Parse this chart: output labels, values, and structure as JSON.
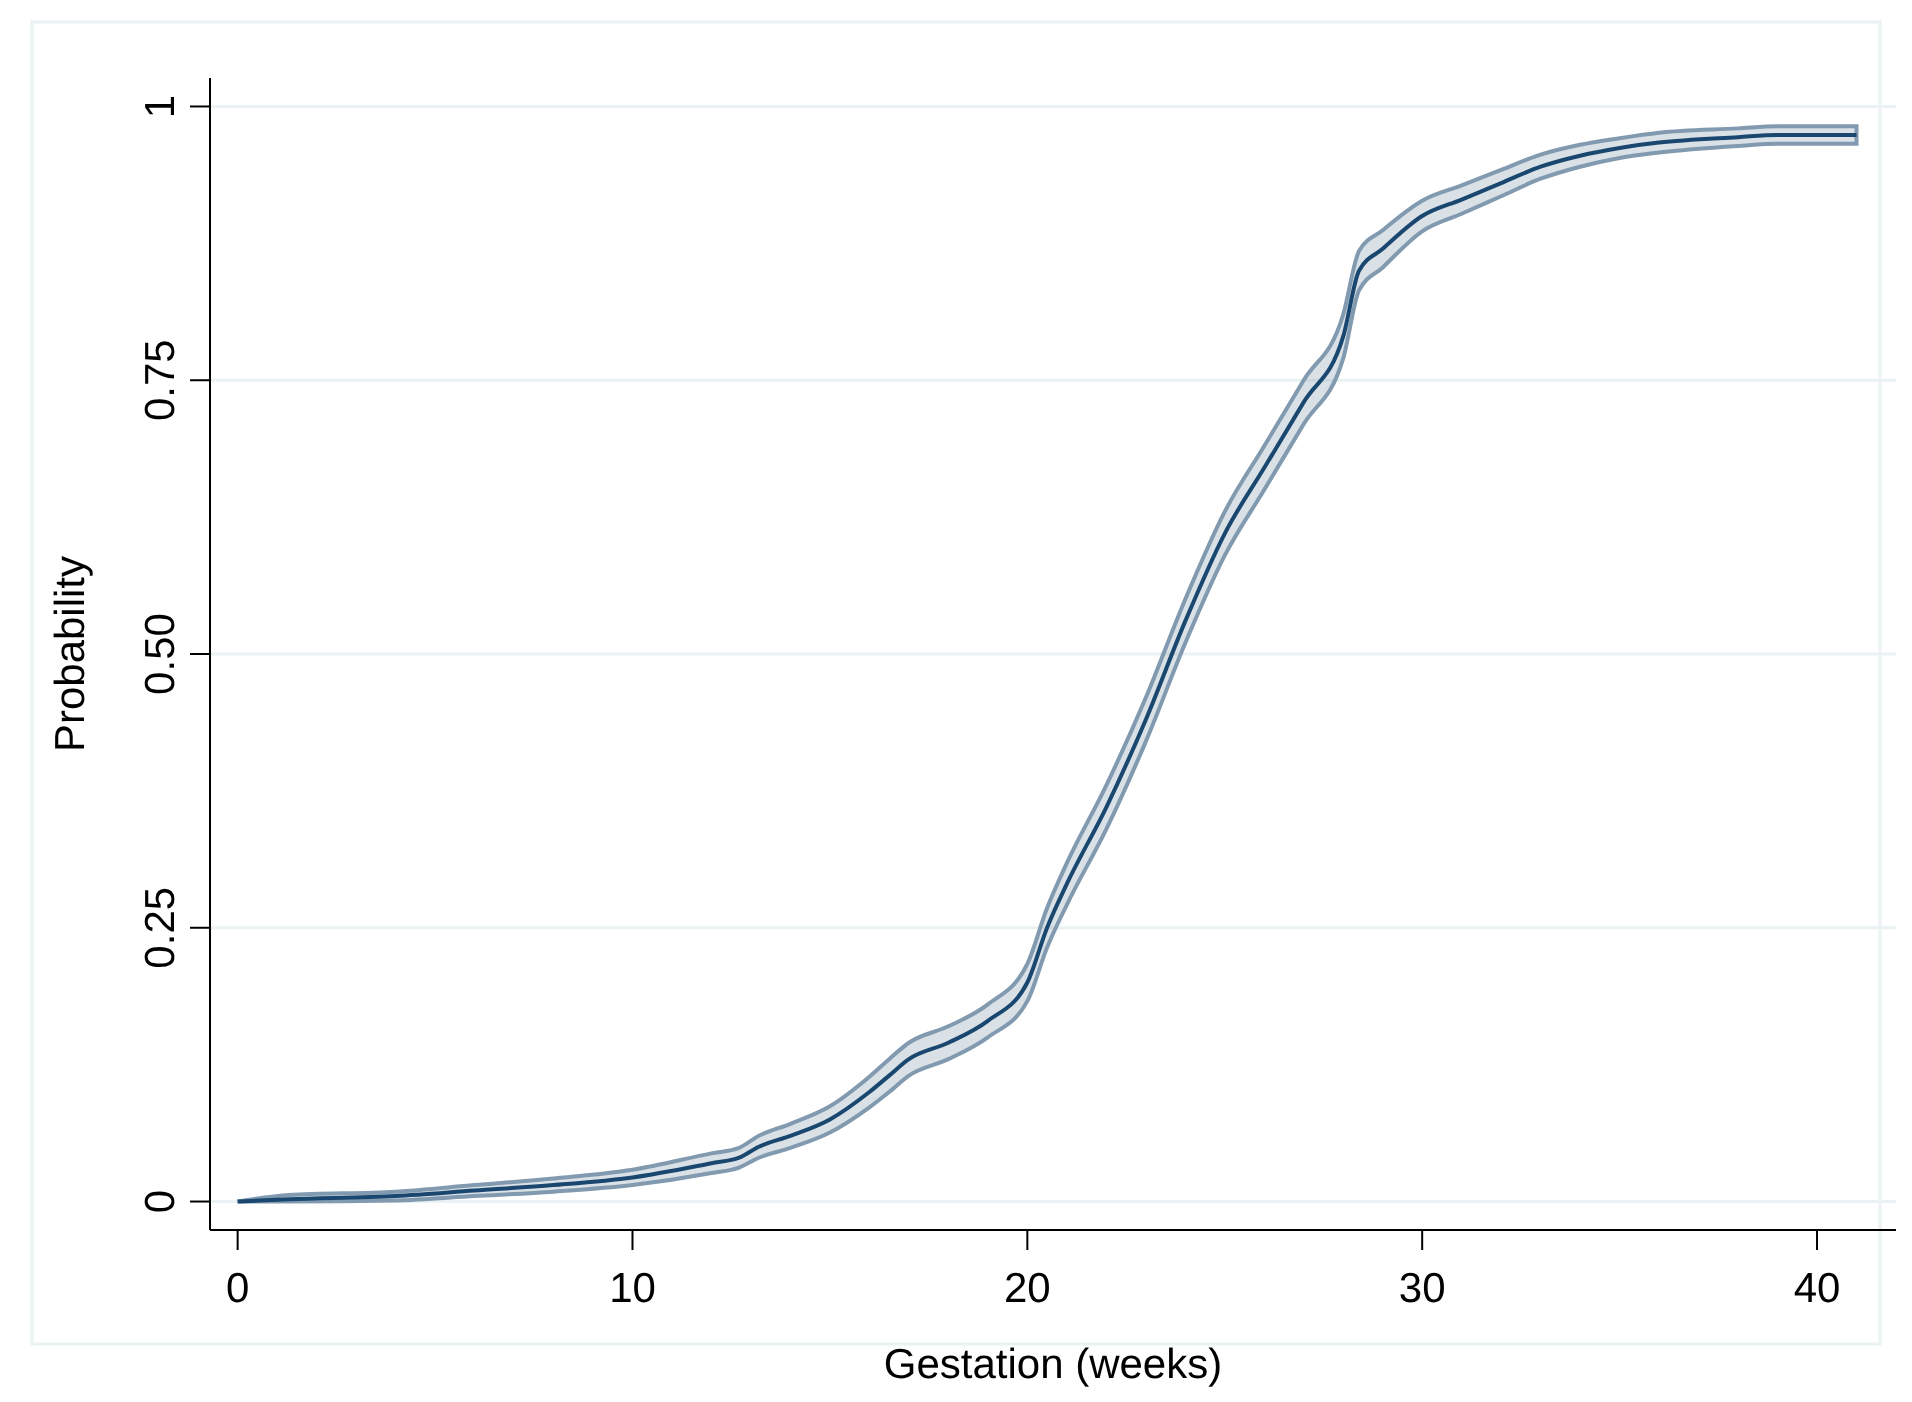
{
  "chart_data": {
    "type": "line",
    "xlabel": "Gestation (weeks)",
    "ylabel": "Probability",
    "xlim": [
      -0.7,
      42
    ],
    "ylim": [
      -0.026,
      1.026
    ],
    "xticks": [
      0,
      10,
      20,
      30,
      40
    ],
    "yticks": [
      {
        "value": 0,
        "label": "0"
      },
      {
        "value": 0.25,
        "label": "0.25"
      },
      {
        "value": 0.5,
        "label": "0.50"
      },
      {
        "value": 0.75,
        "label": "0.75"
      },
      {
        "value": 1,
        "label": "1"
      }
    ],
    "grid": "y",
    "series": [
      {
        "color": "#1a476f",
        "x": [
          0,
          1.3,
          4,
          6,
          8,
          10,
          12,
          12.7,
          13.2,
          14,
          15,
          16,
          16.5,
          17,
          18,
          19,
          20,
          20.5,
          21,
          22,
          23,
          24,
          25,
          26,
          27,
          28,
          28.4,
          29,
          30,
          31,
          32,
          33,
          34,
          35,
          36,
          38,
          39,
          41
        ],
        "values": [
          0,
          0.002,
          0.005,
          0.01,
          0.015,
          0.022,
          0.035,
          0.04,
          0.05,
          0.06,
          0.075,
          0.1,
          0.115,
          0.13,
          0.145,
          0.165,
          0.2,
          0.25,
          0.29,
          0.36,
          0.44,
          0.53,
          0.61,
          0.67,
          0.73,
          0.79,
          0.85,
          0.87,
          0.9,
          0.915,
          0.93,
          0.945,
          0.955,
          0.962,
          0.967,
          0.972,
          0.974,
          0.974
        ],
        "lower": [
          0,
          0,
          0.001,
          0.005,
          0.009,
          0.015,
          0.026,
          0.031,
          0.04,
          0.049,
          0.063,
          0.086,
          0.1,
          0.115,
          0.13,
          0.15,
          0.183,
          0.232,
          0.271,
          0.34,
          0.42,
          0.51,
          0.59,
          0.65,
          0.71,
          0.77,
          0.832,
          0.853,
          0.886,
          0.902,
          0.918,
          0.934,
          0.945,
          0.953,
          0.958,
          0.964,
          0.966,
          0.966
        ],
        "upper": [
          0,
          0.006,
          0.009,
          0.015,
          0.021,
          0.029,
          0.044,
          0.049,
          0.06,
          0.071,
          0.087,
          0.114,
          0.13,
          0.145,
          0.16,
          0.18,
          0.217,
          0.268,
          0.309,
          0.38,
          0.46,
          0.55,
          0.63,
          0.69,
          0.75,
          0.81,
          0.868,
          0.887,
          0.914,
          0.928,
          0.942,
          0.956,
          0.965,
          0.971,
          0.976,
          0.98,
          0.982,
          0.982
        ]
      }
    ]
  }
}
